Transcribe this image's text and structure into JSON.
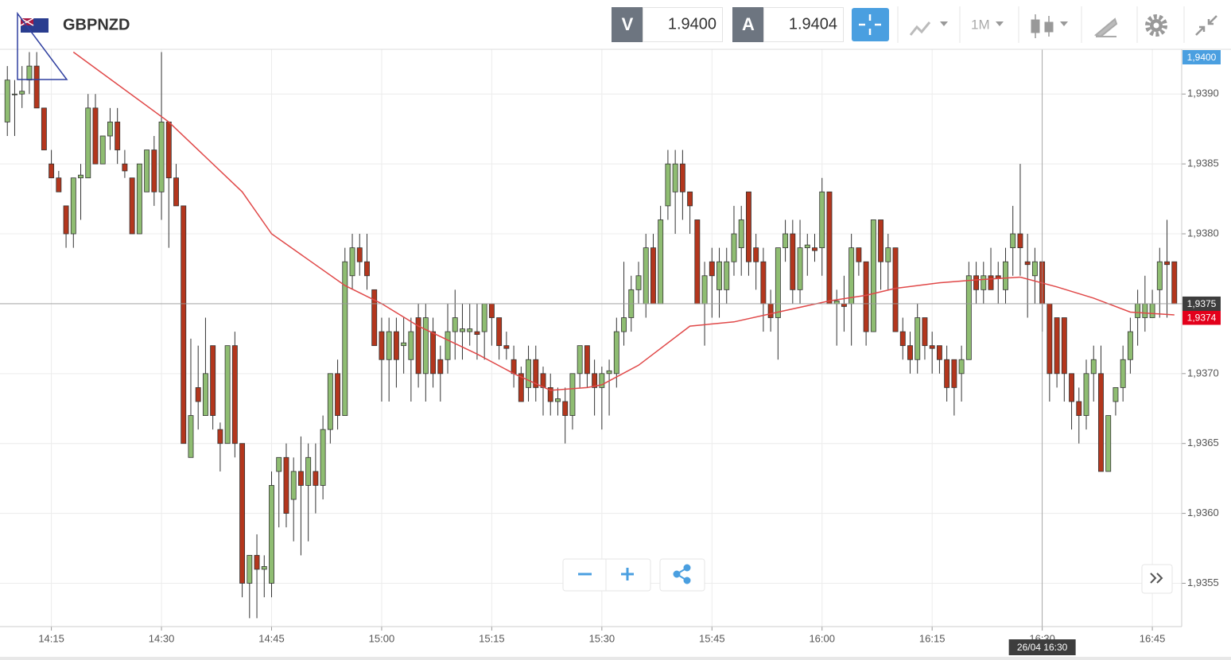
{
  "toolbar": {
    "symbol": "GBPNZD",
    "sell_label": "V",
    "sell_price": "1.9400",
    "buy_label": "A",
    "buy_price": "1.9404",
    "timeframe": "1M"
  },
  "chart_data": {
    "type": "candlestick",
    "x": [
      "14:09",
      "14:10",
      "14:11",
      "14:12",
      "14:13",
      "14:14",
      "14:15",
      "14:16",
      "14:17",
      "14:18",
      "14:19",
      "14:20",
      "14:21",
      "14:22",
      "14:23",
      "14:24",
      "14:25",
      "14:26",
      "14:27",
      "14:28",
      "14:29",
      "14:30",
      "14:31",
      "14:32",
      "14:33",
      "14:34",
      "14:35",
      "14:36",
      "14:37",
      "14:38",
      "14:39",
      "14:40",
      "14:41",
      "14:42",
      "14:43",
      "14:44",
      "14:45",
      "14:46",
      "14:47",
      "14:48",
      "14:49",
      "14:50",
      "14:51",
      "14:52",
      "14:53",
      "14:54",
      "14:55",
      "14:56",
      "14:57",
      "14:58",
      "14:59",
      "15:00",
      "15:01",
      "15:02",
      "15:03",
      "15:04",
      "15:05",
      "15:06",
      "15:07",
      "15:08",
      "15:09",
      "15:10",
      "15:11",
      "15:12",
      "15:13",
      "15:14",
      "15:15",
      "15:16",
      "15:17",
      "15:18",
      "15:19",
      "15:20",
      "15:21",
      "15:22",
      "15:23",
      "15:24",
      "15:25",
      "15:26",
      "15:27",
      "15:28",
      "15:29",
      "15:30",
      "15:31",
      "15:32",
      "15:33",
      "15:34",
      "15:35",
      "15:36",
      "15:37",
      "15:38",
      "15:39",
      "15:40",
      "15:41",
      "15:42",
      "15:43",
      "15:44",
      "15:45",
      "15:46",
      "15:47",
      "15:48",
      "15:49",
      "15:50",
      "15:51",
      "15:52",
      "15:53",
      "15:54",
      "15:55",
      "15:56",
      "15:57",
      "15:58",
      "15:59",
      "16:00",
      "16:01",
      "16:02",
      "16:03",
      "16:04",
      "16:05",
      "16:06",
      "16:07",
      "16:08",
      "16:09",
      "16:10",
      "16:11",
      "16:12",
      "16:13",
      "16:14",
      "16:15",
      "16:16",
      "16:17",
      "16:18",
      "16:19",
      "16:20",
      "16:21",
      "16:22",
      "16:23",
      "16:24",
      "16:25",
      "16:26",
      "16:27",
      "16:28",
      "16:29",
      "16:30",
      "16:31",
      "16:32",
      "16:33",
      "16:34",
      "16:35",
      "16:36",
      "16:37",
      "16:38",
      "16:39",
      "16:40",
      "16:41",
      "16:42",
      "16:43",
      "16:44",
      "16:45",
      "16:46",
      "16:47",
      "16:48"
    ],
    "open": [
      1.9388,
      1.939,
      1.939,
      1.9391,
      1.9392,
      1.9389,
      1.9385,
      1.9384,
      1.9382,
      1.938,
      1.9384,
      1.9384,
      1.9389,
      1.9385,
      1.9387,
      1.9388,
      1.9385,
      1.9384,
      1.938,
      1.9383,
      1.9386,
      1.9383,
      1.9388,
      1.9384,
      1.9382,
      1.9364,
      1.9369,
      1.9367,
      1.9372,
      1.9366,
      1.9365,
      1.9372,
      1.9365,
      1.9355,
      1.9357,
      1.9356,
      1.9355,
      1.9363,
      1.9364,
      1.9361,
      1.9363,
      1.9362,
      1.9363,
      1.9362,
      1.9366,
      1.937,
      1.9367,
      1.9377,
      1.9379,
      1.9378,
      1.9376,
      1.9373,
      1.9371,
      1.9373,
      1.9372,
      1.9371,
      1.9374,
      1.937,
      1.9373,
      1.9371,
      1.9371,
      1.9373,
      1.9373,
      1.9373,
      1.9373,
      1.9373,
      1.9375,
      1.9374,
      1.9372,
      1.9371,
      1.937,
      1.9369,
      1.9371,
      1.937,
      1.9369,
      1.9368,
      1.9368,
      1.9367,
      1.937,
      1.9372,
      1.937,
      1.9369,
      1.937,
      1.937,
      1.9373,
      1.9374,
      1.9376,
      1.9375,
      1.9379,
      1.9375,
      1.9382,
      1.9383,
      1.9385,
      1.9383,
      1.9381,
      1.9375,
      1.9378,
      1.9376,
      1.9376,
      1.9378,
      1.9379,
      1.9383,
      1.9379,
      1.9378,
      1.9375,
      1.9374,
      1.9379,
      1.938,
      1.9376,
      1.9379,
      1.9379,
      1.9379,
      1.9383,
      1.9375,
      1.9375,
      1.9375,
      1.9379,
      1.9378,
      1.9373,
      1.9381,
      1.9378,
      1.9379,
      1.9373,
      1.9372,
      1.9371,
      1.9374,
      1.9372,
      1.9372,
      1.9371,
      1.9371,
      1.937,
      1.9371,
      1.9377,
      1.9376,
      1.9377,
      1.9377,
      1.9376,
      1.9379,
      1.938,
      1.9378,
      1.9377,
      1.9378,
      1.9375,
      1.9374,
      1.9374,
      1.937,
      1.9368,
      1.9367,
      1.937,
      1.937,
      1.9363,
      1.9368,
      1.9369,
      1.9371,
      1.9374,
      1.9374,
      1.9374,
      1.9376,
      1.9378,
      1.9378
    ],
    "high": [
      1.9392,
      1.9391,
      1.9392,
      1.9393,
      1.9393,
      1.9389,
      1.9386,
      1.93845,
      1.9382,
      1.9384,
      1.9385,
      1.939,
      1.939,
      1.9387,
      1.9389,
      1.9389,
      1.9386,
      1.9384,
      1.9385,
      1.9386,
      1.9387,
      1.9393,
      1.9388,
      1.9385,
      1.9382,
      1.93725,
      1.9372,
      1.9374,
      1.9372,
      1.93665,
      1.9372,
      1.9373,
      1.9365,
      1.9357,
      1.93585,
      1.9357,
      1.9363,
      1.9364,
      1.9365,
      1.9364,
      1.93655,
      1.9365,
      1.9365,
      1.9367,
      1.937,
      1.9371,
      1.9379,
      1.938,
      1.938,
      1.938,
      1.9376,
      1.9374,
      1.9374,
      1.9374,
      1.9374,
      1.9374,
      1.9375,
      1.9375,
      1.9374,
      1.9372,
      1.9375,
      1.9376,
      1.9375,
      1.9375,
      1.9375,
      1.9375,
      1.9375,
      1.9374,
      1.9373,
      1.9372,
      1.93705,
      1.9372,
      1.9372,
      1.93705,
      1.937,
      1.9369,
      1.9369,
      1.937,
      1.9372,
      1.9372,
      1.9371,
      1.93705,
      1.9371,
      1.9374,
      1.9378,
      1.9377,
      1.9378,
      1.938,
      1.938,
      1.9382,
      1.9386,
      1.9386,
      1.9386,
      1.9383,
      1.9381,
      1.9378,
      1.9379,
      1.9379,
      1.9379,
      1.9382,
      1.9382,
      1.9383,
      1.938,
      1.9379,
      1.9376,
      1.9379,
      1.9381,
      1.9381,
      1.9381,
      1.938,
      1.938,
      1.9384,
      1.9383,
      1.9376,
      1.9377,
      1.938,
      1.9379,
      1.9378,
      1.9381,
      1.9381,
      1.938,
      1.9379,
      1.9374,
      1.9373,
      1.9375,
      1.9374,
      1.9373,
      1.9372,
      1.9372,
      1.9371,
      1.9372,
      1.9378,
      1.9378,
      1.9378,
      1.9379,
      1.9378,
      1.9379,
      1.9382,
      1.9385,
      1.938,
      1.9379,
      1.9378,
      1.9375,
      1.9374,
      1.9374,
      1.937,
      1.9369,
      1.9371,
      1.9372,
      1.9372,
      1.9367,
      1.9369,
      1.9372,
      1.9374,
      1.9376,
      1.9377,
      1.9376,
      1.9379,
      1.9381,
      1.9378
    ],
    "low": [
      1.9387,
      1.9387,
      1.9389,
      1.939,
      1.9389,
      1.9386,
      1.9384,
      1.9383,
      1.9379,
      1.9379,
      1.9381,
      1.9384,
      1.9385,
      1.9385,
      1.9386,
      1.9385,
      1.9384,
      1.938,
      1.938,
      1.9383,
      1.9382,
      1.9381,
      1.9379,
      1.9382,
      1.9365,
      1.9364,
      1.9366,
      1.9367,
      1.9366,
      1.9363,
      1.9365,
      1.9364,
      1.9354,
      1.93525,
      1.93525,
      1.9354,
      1.9354,
      1.9359,
      1.9359,
      1.9358,
      1.9357,
      1.9358,
      1.936,
      1.9361,
      1.9365,
      1.9366,
      1.9367,
      1.9376,
      1.9377,
      1.9376,
      1.9372,
      1.9368,
      1.9368,
      1.9369,
      1.937,
      1.9368,
      1.9369,
      1.9368,
      1.9369,
      1.9368,
      1.937,
      1.9371,
      1.9371,
      1.9372,
      1.9371,
      1.9371,
      1.9372,
      1.9371,
      1.9371,
      1.9369,
      1.9368,
      1.9368,
      1.9368,
      1.9367,
      1.9367,
      1.9367,
      1.9365,
      1.9366,
      1.9369,
      1.9369,
      1.9367,
      1.9366,
      1.9367,
      1.9369,
      1.9372,
      1.9373,
      1.9375,
      1.9374,
      1.9375,
      1.9375,
      1.9381,
      1.938,
      1.9381,
      1.938,
      1.9375,
      1.9372,
      1.9374,
      1.9374,
      1.9375,
      1.9377,
      1.9377,
      1.9377,
      1.9376,
      1.9373,
      1.9373,
      1.9371,
      1.9378,
      1.9375,
      1.9375,
      1.9377,
      1.9378,
      1.9377,
      1.9375,
      1.9372,
      1.9373,
      1.9372,
      1.9377,
      1.9372,
      1.9373,
      1.9376,
      1.9376,
      1.9373,
      1.9371,
      1.937,
      1.937,
      1.9371,
      1.937,
      1.937,
      1.9368,
      1.9367,
      1.9368,
      1.9371,
      1.9375,
      1.9375,
      1.9376,
      1.9375,
      1.9375,
      1.9377,
      1.9377,
      1.9374,
      1.9375,
      1.9373,
      1.9368,
      1.9369,
      1.9368,
      1.9366,
      1.9365,
      1.9366,
      1.9368,
      1.9363,
      1.9363,
      1.9367,
      1.9368,
      1.937,
      1.9372,
      1.9373,
      1.9374,
      1.9374,
      1.9374,
      1.9375
    ],
    "close": [
      1.9391,
      1.939,
      1.93902,
      1.9392,
      1.9389,
      1.9386,
      1.9384,
      1.9383,
      1.938,
      1.9384,
      1.93842,
      1.9389,
      1.9385,
      1.9387,
      1.9388,
      1.9386,
      1.93845,
      1.938,
      1.9385,
      1.9386,
      1.9383,
      1.9388,
      1.9384,
      1.9382,
      1.9365,
      1.9367,
      1.9368,
      1.937,
      1.9367,
      1.9365,
      1.9372,
      1.9365,
      1.9355,
      1.9357,
      1.9356,
      1.93562,
      1.9362,
      1.9364,
      1.936,
      1.9363,
      1.9362,
      1.9364,
      1.9362,
      1.9366,
      1.937,
      1.9367,
      1.9378,
      1.9379,
      1.9378,
      1.9377,
      1.9372,
      1.9371,
      1.9373,
      1.9371,
      1.93722,
      1.9373,
      1.937,
      1.9374,
      1.937,
      1.937,
      1.9373,
      1.9374,
      1.93732,
      1.93732,
      1.93728,
      1.9375,
      1.9374,
      1.9372,
      1.93718,
      1.937,
      1.9368,
      1.9371,
      1.9369,
      1.9369,
      1.9368,
      1.93682,
      1.9367,
      1.937,
      1.9372,
      1.937,
      1.9369,
      1.937,
      1.93702,
      1.9373,
      1.9374,
      1.9376,
      1.9377,
      1.9379,
      1.9375,
      1.9381,
      1.9385,
      1.9385,
      1.9383,
      1.9382,
      1.9375,
      1.9377,
      1.9377,
      1.9378,
      1.9378,
      1.938,
      1.9381,
      1.9378,
      1.9378,
      1.9375,
      1.9374,
      1.9379,
      1.938,
      1.9376,
      1.9379,
      1.93792,
      1.93788,
      1.9383,
      1.9375,
      1.93752,
      1.93748,
      1.9379,
      1.9378,
      1.9373,
      1.9381,
      1.9378,
      1.9379,
      1.9373,
      1.9372,
      1.9371,
      1.9374,
      1.9372,
      1.93718,
      1.9371,
      1.9369,
      1.9369,
      1.9371,
      1.9377,
      1.9376,
      1.9377,
      1.9376,
      1.93768,
      1.9378,
      1.938,
      1.9379,
      1.93778,
      1.9378,
      1.9375,
      1.937,
      1.937,
      1.937,
      1.9368,
      1.9367,
      1.937,
      1.9371,
      1.9363,
      1.9367,
      1.9369,
      1.9371,
      1.9373,
      1.9375,
      1.9375,
      1.9375,
      1.9378,
      1.93778,
      1.9375
    ],
    "up_color": "#8fbd72",
    "down_color": "#b3361d",
    "ylim": [
      1.93519,
      1.93932
    ],
    "yticks": [
      {
        "value": 1.9355,
        "label": "1,9355"
      },
      {
        "value": 1.936,
        "label": "1,9360"
      },
      {
        "value": 1.9365,
        "label": "1,9365"
      },
      {
        "value": 1.937,
        "label": "1,9370"
      },
      {
        "value": 1.9375,
        "label": "1,9375"
      },
      {
        "value": 1.938,
        "label": "1,9380"
      },
      {
        "value": 1.9385,
        "label": "1,9385"
      },
      {
        "value": 1.939,
        "label": "1,9390"
      }
    ],
    "xlim": [
      "14:08",
      "16:49"
    ],
    "xticks": [
      "14:15",
      "14:30",
      "14:45",
      "15:00",
      "15:15",
      "15:30",
      "15:45",
      "16:00",
      "16:15",
      "16:30",
      "16:45"
    ],
    "grid": true,
    "ma": {
      "color": "#e04848",
      "x": [
        "14:18",
        "14:31",
        "14:41",
        "14:45",
        "14:55",
        "15:00",
        "15:05",
        "15:13",
        "15:18",
        "15:23",
        "15:28",
        "15:30",
        "15:35",
        "15:42",
        "15:48",
        "15:54",
        "16:01",
        "16:06",
        "16:10",
        "16:16",
        "16:21",
        "16:27",
        "16:32",
        "16:37",
        "16:42",
        "16:48"
      ],
      "values": [
        1.9393,
        1.9388,
        1.9383,
        1.938,
        1.93763,
        1.9375,
        1.93734,
        1.93714,
        1.937,
        1.93688,
        1.9369,
        1.93692,
        1.93706,
        1.93734,
        1.93737,
        1.93744,
        1.93752,
        1.93756,
        1.93761,
        1.93765,
        1.93767,
        1.93769,
        1.93762,
        1.93754,
        1.93744,
        1.93742
      ]
    },
    "crosshair": {
      "x": "16:30",
      "value": 1.9375,
      "label": "1,9375",
      "time_label": "26/04 16:30"
    },
    "last_price": {
      "value": 1.9374,
      "label": "1,9374"
    },
    "bid_marker": {
      "value": 1.94,
      "label": "1,9400"
    }
  }
}
